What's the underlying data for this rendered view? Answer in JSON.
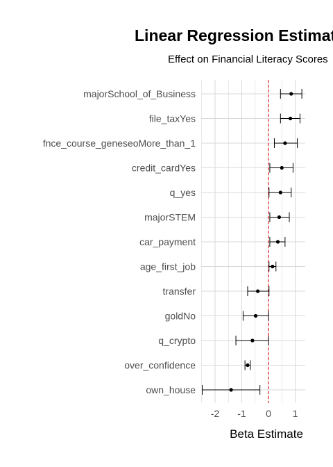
{
  "chart_data": {
    "type": "forest",
    "title": "Linear Regression Estimates",
    "subtitle": "Effect on Financial Literacy Scores",
    "xlabel": "Beta Estimate",
    "ylabel": "",
    "xlim": [
      -2.6,
      1.35
    ],
    "xticks": [
      -2,
      -1,
      0,
      1
    ],
    "xtick_labels": [
      "-2",
      "-1",
      "0",
      "1"
    ],
    "grid": true,
    "reference_line": {
      "x": 0,
      "color": "#e41a1c",
      "style": "dashed"
    },
    "terms": [
      {
        "label": "majorSchool_of_Business",
        "estimate": 0.85,
        "low": 0.45,
        "high": 1.25
      },
      {
        "label": "file_taxYes",
        "estimate": 0.82,
        "low": 0.45,
        "high": 1.18
      },
      {
        "label": "fnce_course_geneseoMore_than_1",
        "estimate": 0.62,
        "low": 0.22,
        "high": 1.08
      },
      {
        "label": "credit_cardYes",
        "estimate": 0.5,
        "low": 0.05,
        "high": 0.92
      },
      {
        "label": "q_yes",
        "estimate": 0.45,
        "low": 0.02,
        "high": 0.85
      },
      {
        "label": "majorSTEM",
        "estimate": 0.4,
        "low": 0.05,
        "high": 0.78
      },
      {
        "label": "car_payment",
        "estimate": 0.35,
        "low": 0.05,
        "high": 0.62
      },
      {
        "label": "age_first_job",
        "estimate": 0.15,
        "low": 0.02,
        "high": 0.28
      },
      {
        "label": "transfer",
        "estimate": -0.4,
        "low": -0.78,
        "high": 0.02
      },
      {
        "label": "goldNo",
        "estimate": -0.48,
        "low": -0.95,
        "high": 0.0
      },
      {
        "label": "q_crypto",
        "estimate": -0.6,
        "low": -1.22,
        "high": 0.0
      },
      {
        "label": "over_confidence",
        "estimate": -0.78,
        "low": -0.88,
        "high": -0.68
      },
      {
        "label": "own_house",
        "estimate": -1.4,
        "low": -2.48,
        "high": -0.32
      }
    ]
  },
  "colors": {
    "point": "#000000",
    "errorbar": "#000000",
    "grid": "#d9d9d9",
    "reference_line": "#e41a1c"
  }
}
